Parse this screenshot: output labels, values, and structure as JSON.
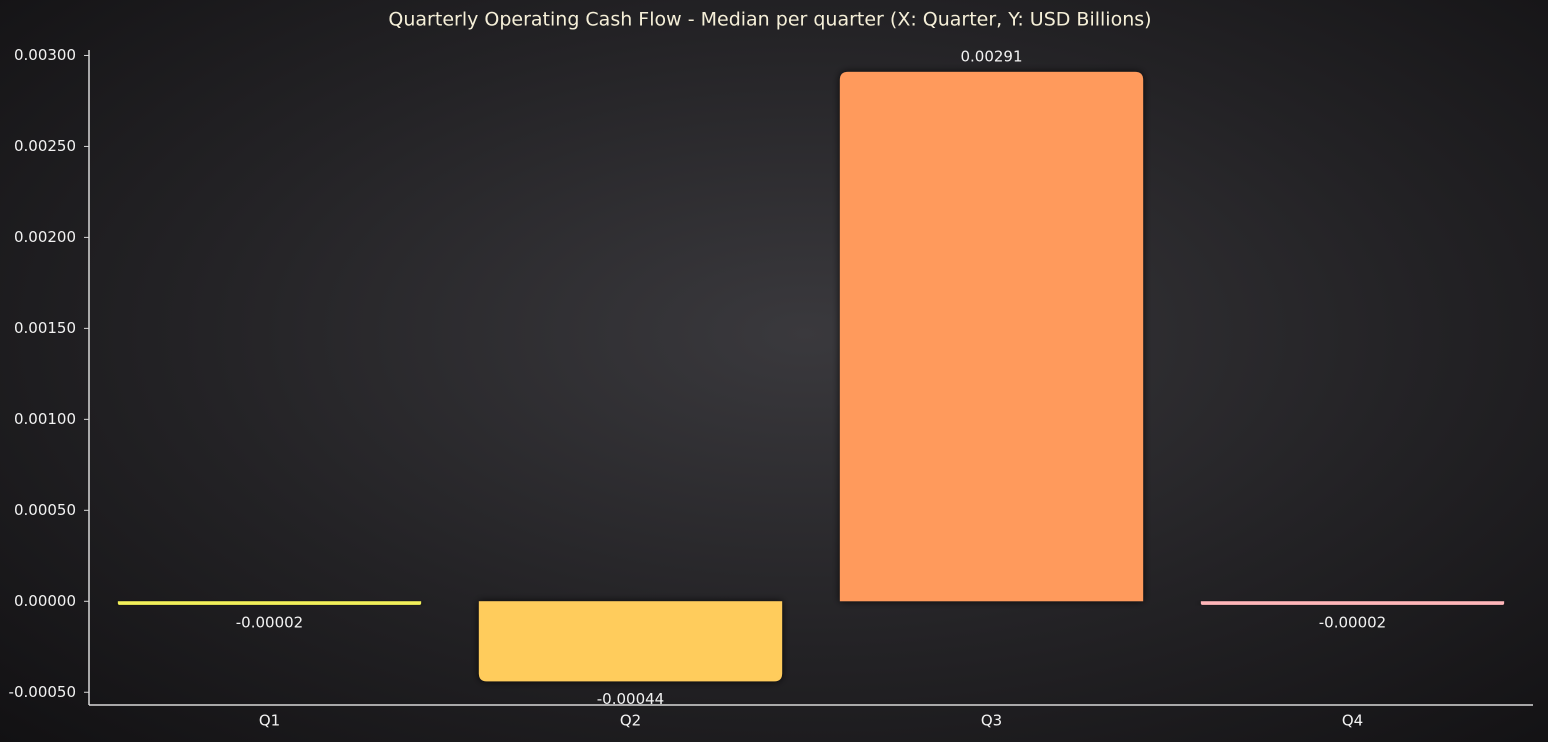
{
  "chart_data": {
    "type": "bar",
    "title": "Quarterly Operating Cash Flow - Median per quarter (X: Quarter, Y: USD Billions)",
    "categories": [
      "Q1",
      "Q2",
      "Q3",
      "Q4"
    ],
    "values": [
      -2e-05,
      -0.00044,
      0.00291,
      -2e-05
    ],
    "colors": [
      "#f2f05a",
      "#ffcc5c",
      "#ff9a5c",
      "#ffb6b9"
    ],
    "ylim": [
      -0.00057,
      0.00303
    ],
    "yticks": [
      {
        "value": -0.0005,
        "label": "-0.00050"
      },
      {
        "value": 0,
        "label": "0.00000"
      },
      {
        "value": 0.0005,
        "label": "0.00050"
      },
      {
        "value": 0.001,
        "label": "0.00100"
      },
      {
        "value": 0.0015,
        "label": "0.00150"
      },
      {
        "value": 0.002,
        "label": "0.00200"
      },
      {
        "value": 0.0025,
        "label": "0.00250"
      },
      {
        "value": 0.003,
        "label": "0.00300"
      }
    ],
    "grid": false
  }
}
